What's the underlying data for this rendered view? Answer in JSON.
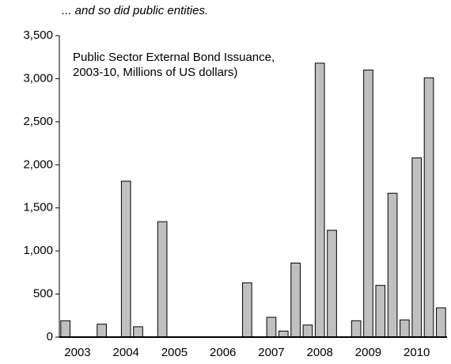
{
  "chart_data": {
    "type": "bar",
    "title": "... and so did public entities.",
    "annotation": [
      "Public Sector External Bond Issuance,",
      "2003-10, Millions of US dollars)"
    ],
    "categories": [
      null,
      "2003",
      null,
      null,
      null,
      "2004",
      null,
      null,
      null,
      "2005",
      null,
      null,
      null,
      "2006",
      null,
      null,
      null,
      "2007",
      null,
      null,
      null,
      "2008",
      null,
      null,
      null,
      "2009",
      null,
      null,
      null,
      "2010",
      null,
      null
    ],
    "values": [
      190,
      0,
      0,
      150,
      0,
      1810,
      120,
      0,
      1340,
      0,
      0,
      0,
      0,
      0,
      0,
      630,
      0,
      230,
      70,
      860,
      140,
      3180,
      1240,
      0,
      190,
      3100,
      600,
      1670,
      200,
      2080,
      3010,
      340
    ],
    "color": "#c0c0c0",
    "ylim": [
      0,
      3500
    ],
    "yticks": [
      0,
      500,
      {
        "value": 1000,
        "label": "1,000"
      },
      {
        "value": 1500,
        "label": "1,500"
      },
      {
        "value": 2000,
        "label": "2,000"
      },
      {
        "value": 2500,
        "label": "2,500"
      },
      {
        "value": 3000,
        "label": "3,000"
      },
      {
        "value": 3500,
        "label": "3,500"
      }
    ],
    "grid": false
  }
}
